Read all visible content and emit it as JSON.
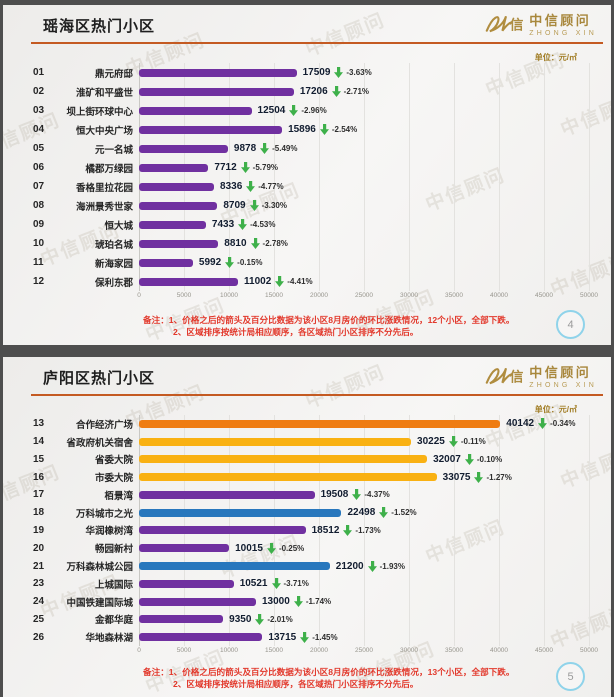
{
  "logo": {
    "cn": "中信顾问",
    "en": "ZHONG XIN"
  },
  "unit_label": "单位：元/㎡",
  "watermark": "中信顾问",
  "axis": {
    "max": 50000,
    "ticks": [
      0,
      5000,
      10000,
      15000,
      20000,
      25000,
      30000,
      35000,
      40000,
      45000,
      50000
    ]
  },
  "colors": {
    "purple": "#7030A0",
    "yellow": "#F9B112",
    "orange": "#EF7C12",
    "blue": "#2877BD",
    "arrow_green": "#3EB04A",
    "accent_line": "#C45A22",
    "note_red": "#E2382B"
  },
  "slides": [
    {
      "title": "瑶海区热门小区",
      "page_number": "4",
      "note": {
        "label": "备注：",
        "line1": "1、价格之后的箭头及百分比数据为该小区8月房价的环比涨跌情况，",
        "line1_bold": "12个小区，全部下跌。",
        "line2": "2、区域排序按统计局相应顺序，各区域热门小区排序不分先后。"
      },
      "rows": [
        {
          "rank": "01",
          "name": "鼎元府邸",
          "value": 17509,
          "change": "-3.63%",
          "color": "purple"
        },
        {
          "rank": "02",
          "name": "淮矿和平盛世",
          "value": 17206,
          "change": "-2.71%",
          "color": "purple"
        },
        {
          "rank": "03",
          "name": "坝上街环球中心",
          "value": 12504,
          "change": "-2.96%",
          "color": "purple"
        },
        {
          "rank": "04",
          "name": "恒大中央广场",
          "value": 15896,
          "change": "-2.54%",
          "color": "purple"
        },
        {
          "rank": "05",
          "name": "元一名城",
          "value": 9878,
          "change": "-5.49%",
          "color": "purple"
        },
        {
          "rank": "06",
          "name": "橘郡万绿园",
          "value": 7712,
          "change": "-5.79%",
          "color": "purple"
        },
        {
          "rank": "07",
          "name": "香格里拉花园",
          "value": 8336,
          "change": "-4.77%",
          "color": "purple"
        },
        {
          "rank": "08",
          "name": "海洲景秀世家",
          "value": 8709,
          "change": "-3.30%",
          "color": "purple"
        },
        {
          "rank": "09",
          "name": "恒大城",
          "value": 7433,
          "change": "-4.53%",
          "color": "purple"
        },
        {
          "rank": "10",
          "name": "琥珀名城",
          "value": 8810,
          "change": "-2.78%",
          "color": "purple"
        },
        {
          "rank": "11",
          "name": "新海家园",
          "value": 5992,
          "change": "-0.15%",
          "color": "purple"
        },
        {
          "rank": "12",
          "name": "保利东郡",
          "value": 11002,
          "change": "-4.41%",
          "color": "purple"
        }
      ]
    },
    {
      "title": "庐阳区热门小区",
      "page_number": "5",
      "note": {
        "label": "备注：",
        "line1": "1、价格之后的箭头及百分比数据为该小区8月房价的环比涨跌情况，",
        "line1_bold": "13个小区，全部下跌。",
        "line2": "2、区域排序按统计局相应顺序，各区域热门小区排序不分先后。"
      },
      "rows": [
        {
          "rank": "13",
          "name": "合作经济广场",
          "value": 40142,
          "change": "-0.34%",
          "color": "orange"
        },
        {
          "rank": "14",
          "name": "省政府机关宿舍",
          "value": 30225,
          "change": "-0.11%",
          "color": "yellow"
        },
        {
          "rank": "15",
          "name": "省委大院",
          "value": 32007,
          "change": "-0.10%",
          "color": "yellow"
        },
        {
          "rank": "16",
          "name": "市委大院",
          "value": 33075,
          "change": "-1.27%",
          "color": "yellow"
        },
        {
          "rank": "17",
          "name": "栢景湾",
          "value": 19508,
          "change": "-4.37%",
          "color": "purple"
        },
        {
          "rank": "18",
          "name": "万科城市之光",
          "value": 22498,
          "change": "-1.52%",
          "color": "blue"
        },
        {
          "rank": "19",
          "name": "华润橡树湾",
          "value": 18512,
          "change": "-1.73%",
          "color": "purple"
        },
        {
          "rank": "20",
          "name": "畅园新村",
          "value": 10015,
          "change": "-0.25%",
          "color": "purple"
        },
        {
          "rank": "21",
          "name": "万科森林城公园",
          "value": 21200,
          "change": "-1.93%",
          "color": "blue"
        },
        {
          "rank": "23",
          "name": "上城国际",
          "value": 10521,
          "change": "-3.71%",
          "color": "purple"
        },
        {
          "rank": "24",
          "name": "中国铁建国际城",
          "value": 13000,
          "change": "-1.74%",
          "color": "purple"
        },
        {
          "rank": "25",
          "name": "金都华庭",
          "value": 9350,
          "change": "-2.01%",
          "color": "purple"
        },
        {
          "rank": "26",
          "name": "华地森林湖",
          "value": 13715,
          "change": "-1.45%",
          "color": "purple"
        }
      ]
    }
  ],
  "chart_data": [
    {
      "type": "bar",
      "orientation": "horizontal",
      "title": "瑶海区热门小区",
      "unit": "元/㎡",
      "xlim": [
        0,
        50000
      ],
      "x_ticks": [
        0,
        5000,
        10000,
        15000,
        20000,
        25000,
        30000,
        35000,
        40000,
        45000,
        50000
      ],
      "grid": true,
      "ranks": [
        "01",
        "02",
        "03",
        "04",
        "05",
        "06",
        "07",
        "08",
        "09",
        "10",
        "11",
        "12"
      ],
      "categories": [
        "鼎元府邸",
        "淮矿和平盛世",
        "坝上街环球中心",
        "恒大中央广场",
        "元一名城",
        "橘郡万绿园",
        "香格里拉花园",
        "海洲景秀世家",
        "恒大城",
        "琥珀名城",
        "新海家园",
        "保利东郡"
      ],
      "values": [
        17509,
        17206,
        12504,
        15896,
        9878,
        7712,
        8336,
        8709,
        7433,
        8810,
        5992,
        11002
      ],
      "changes_mom": [
        "-3.63%",
        "-2.71%",
        "-2.96%",
        "-2.54%",
        "-5.49%",
        "-5.79%",
        "-4.77%",
        "-3.30%",
        "-4.53%",
        "-2.78%",
        "-0.15%",
        "-4.41%"
      ],
      "bar_color": "#7030A0",
      "page_number": "4"
    },
    {
      "type": "bar",
      "orientation": "horizontal",
      "title": "庐阳区热门小区",
      "unit": "元/㎡",
      "xlim": [
        0,
        50000
      ],
      "x_ticks": [
        0,
        5000,
        10000,
        15000,
        20000,
        25000,
        30000,
        35000,
        40000,
        45000,
        50000
      ],
      "grid": true,
      "ranks": [
        "13",
        "14",
        "15",
        "16",
        "17",
        "18",
        "19",
        "20",
        "21",
        "23",
        "24",
        "25",
        "26"
      ],
      "categories": [
        "合作经济广场",
        "省政府机关宿舍",
        "省委大院",
        "市委大院",
        "栢景湾",
        "万科城市之光",
        "华润橡树湾",
        "畅园新村",
        "万科森林城公园",
        "上城国际",
        "中国铁建国际城",
        "金都华庭",
        "华地森林湖"
      ],
      "values": [
        40142,
        30225,
        32007,
        33075,
        19508,
        22498,
        18512,
        10015,
        21200,
        10521,
        13000,
        9350,
        13715
      ],
      "changes_mom": [
        "-0.34%",
        "-0.11%",
        "-0.10%",
        "-1.27%",
        "-4.37%",
        "-1.52%",
        "-1.73%",
        "-0.25%",
        "-1.93%",
        "-3.71%",
        "-1.74%",
        "-2.01%",
        "-1.45%"
      ],
      "bar_colors": [
        "#EF7C12",
        "#F9B112",
        "#F9B112",
        "#F9B112",
        "#7030A0",
        "#2877BD",
        "#7030A0",
        "#7030A0",
        "#2877BD",
        "#7030A0",
        "#7030A0",
        "#7030A0",
        "#7030A0"
      ],
      "page_number": "5"
    }
  ]
}
